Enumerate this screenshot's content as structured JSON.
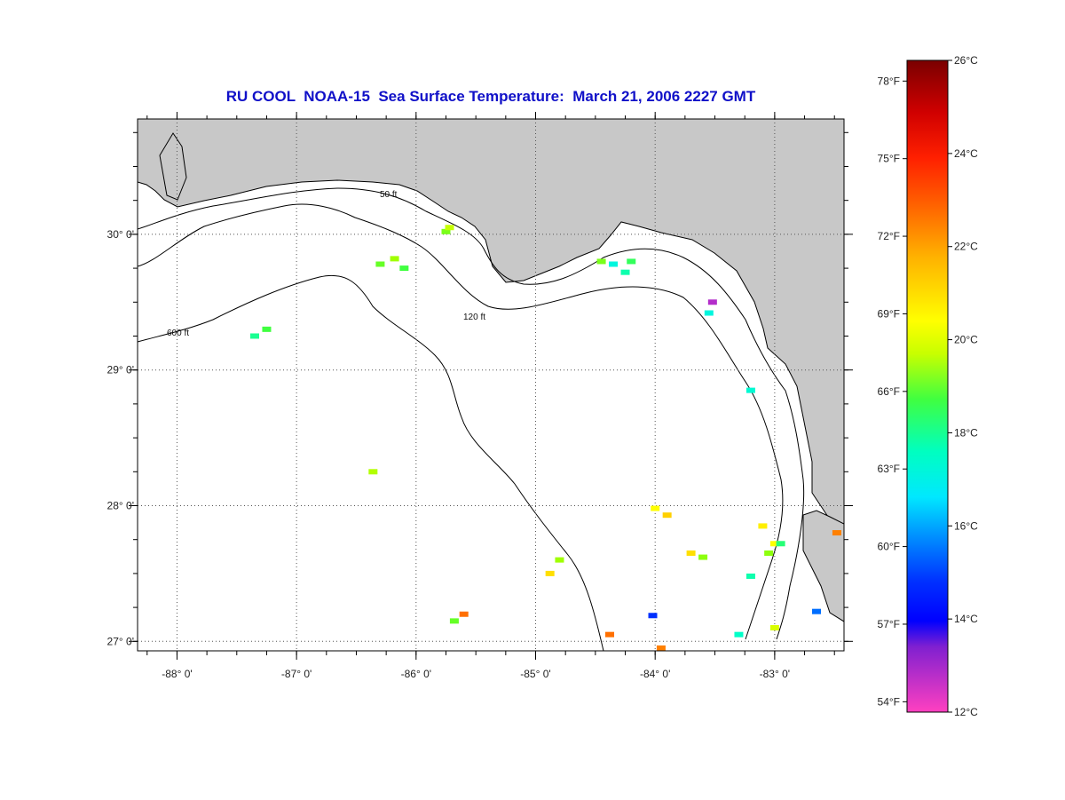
{
  "title": "RU COOL  NOAA-15  Sea Surface Temperature:  March 21, 2006 2227 GMT",
  "map": {
    "lon_range": [
      -88.33,
      -82.42
    ],
    "lat_range": [
      26.93,
      30.85
    ],
    "longitude_labels": [
      {
        "lon": -88,
        "label": "-88° 0'"
      },
      {
        "lon": -87,
        "label": "-87° 0'"
      },
      {
        "lon": -86,
        "label": "-86° 0'"
      },
      {
        "lon": -85,
        "label": "-85° 0'"
      },
      {
        "lon": -84,
        "label": "-84° 0'"
      },
      {
        "lon": -83,
        "label": "-83° 0'"
      }
    ],
    "latitude_labels": [
      {
        "lat": 30,
        "label": "30° 0'"
      },
      {
        "lat": 29,
        "label": "29° 0'"
      },
      {
        "lat": 28,
        "label": "28° 0'"
      },
      {
        "lat": 27,
        "label": "27° 0'"
      }
    ],
    "grid": "dotted",
    "land_color": "#c8c8c8",
    "ocean_color": "#ffffff",
    "contour_labels": [
      "50 ft",
      "120 ft",
      "600 ft"
    ]
  },
  "colorbar": {
    "range_c": [
      12,
      26
    ],
    "f_labels": [
      "78°F",
      "75°F",
      "72°F",
      "69°F",
      "66°F",
      "63°F",
      "60°F",
      "57°F",
      "54°F"
    ],
    "f_values": [
      78,
      75,
      72,
      69,
      66,
      63,
      60,
      57,
      54
    ],
    "c_labels": [
      "26°C",
      "24°C",
      "22°C",
      "20°C",
      "18°C",
      "16°C",
      "14°C",
      "12°C"
    ],
    "c_values": [
      26,
      24,
      22,
      20,
      18,
      16,
      14,
      12
    ]
  },
  "sst_pixels": [
    {
      "lon": -85.75,
      "lat": 30.02,
      "c": 19.6
    },
    {
      "lon": -85.72,
      "lat": 30.05,
      "c": 20.4
    },
    {
      "lon": -86.3,
      "lat": 29.78,
      "c": 19.4
    },
    {
      "lon": -86.18,
      "lat": 29.82,
      "c": 20.0
    },
    {
      "lon": -86.1,
      "lat": 29.75,
      "c": 19.0
    },
    {
      "lon": -84.35,
      "lat": 29.78,
      "c": 17.6
    },
    {
      "lon": -84.25,
      "lat": 29.72,
      "c": 18.2
    },
    {
      "lon": -84.2,
      "lat": 29.8,
      "c": 18.8
    },
    {
      "lon": -84.45,
      "lat": 29.8,
      "c": 19.6
    },
    {
      "lon": -83.55,
      "lat": 29.42,
      "c": 17.6
    },
    {
      "lon": -83.52,
      "lat": 29.5,
      "c": 12.6
    },
    {
      "lon": -87.35,
      "lat": 29.25,
      "c": 18.4
    },
    {
      "lon": -87.25,
      "lat": 29.3,
      "c": 19.0
    },
    {
      "lon": -83.2,
      "lat": 28.85,
      "c": 17.8
    },
    {
      "lon": -86.36,
      "lat": 28.25,
      "c": 20.2
    },
    {
      "lon": -84.0,
      "lat": 27.98,
      "c": 21.0
    },
    {
      "lon": -83.9,
      "lat": 27.93,
      "c": 21.6
    },
    {
      "lon": -84.8,
      "lat": 27.6,
      "c": 20.0
    },
    {
      "lon": -84.88,
      "lat": 27.5,
      "c": 21.4
    },
    {
      "lon": -83.0,
      "lat": 27.72,
      "c": 21.0
    },
    {
      "lon": -82.95,
      "lat": 27.72,
      "c": 18.6
    },
    {
      "lon": -83.05,
      "lat": 27.65,
      "c": 19.8
    },
    {
      "lon": -83.1,
      "lat": 27.85,
      "c": 21.2
    },
    {
      "lon": -82.48,
      "lat": 27.8,
      "c": 22.6
    },
    {
      "lon": -83.7,
      "lat": 27.65,
      "c": 21.4
    },
    {
      "lon": -83.6,
      "lat": 27.62,
      "c": 19.8
    },
    {
      "lon": -85.6,
      "lat": 27.2,
      "c": 22.8
    },
    {
      "lon": -85.68,
      "lat": 27.15,
      "c": 19.4
    },
    {
      "lon": -84.38,
      "lat": 27.05,
      "c": 22.8
    },
    {
      "lon": -84.02,
      "lat": 27.19,
      "c": 14.8
    },
    {
      "lon": -83.3,
      "lat": 27.05,
      "c": 18.0
    },
    {
      "lon": -83.0,
      "lat": 27.1,
      "c": 20.6
    },
    {
      "lon": -82.65,
      "lat": 27.22,
      "c": 15.6
    },
    {
      "lon": -83.2,
      "lat": 27.48,
      "c": 18.2
    },
    {
      "lon": -83.95,
      "lat": 26.95,
      "c": 22.6
    }
  ]
}
